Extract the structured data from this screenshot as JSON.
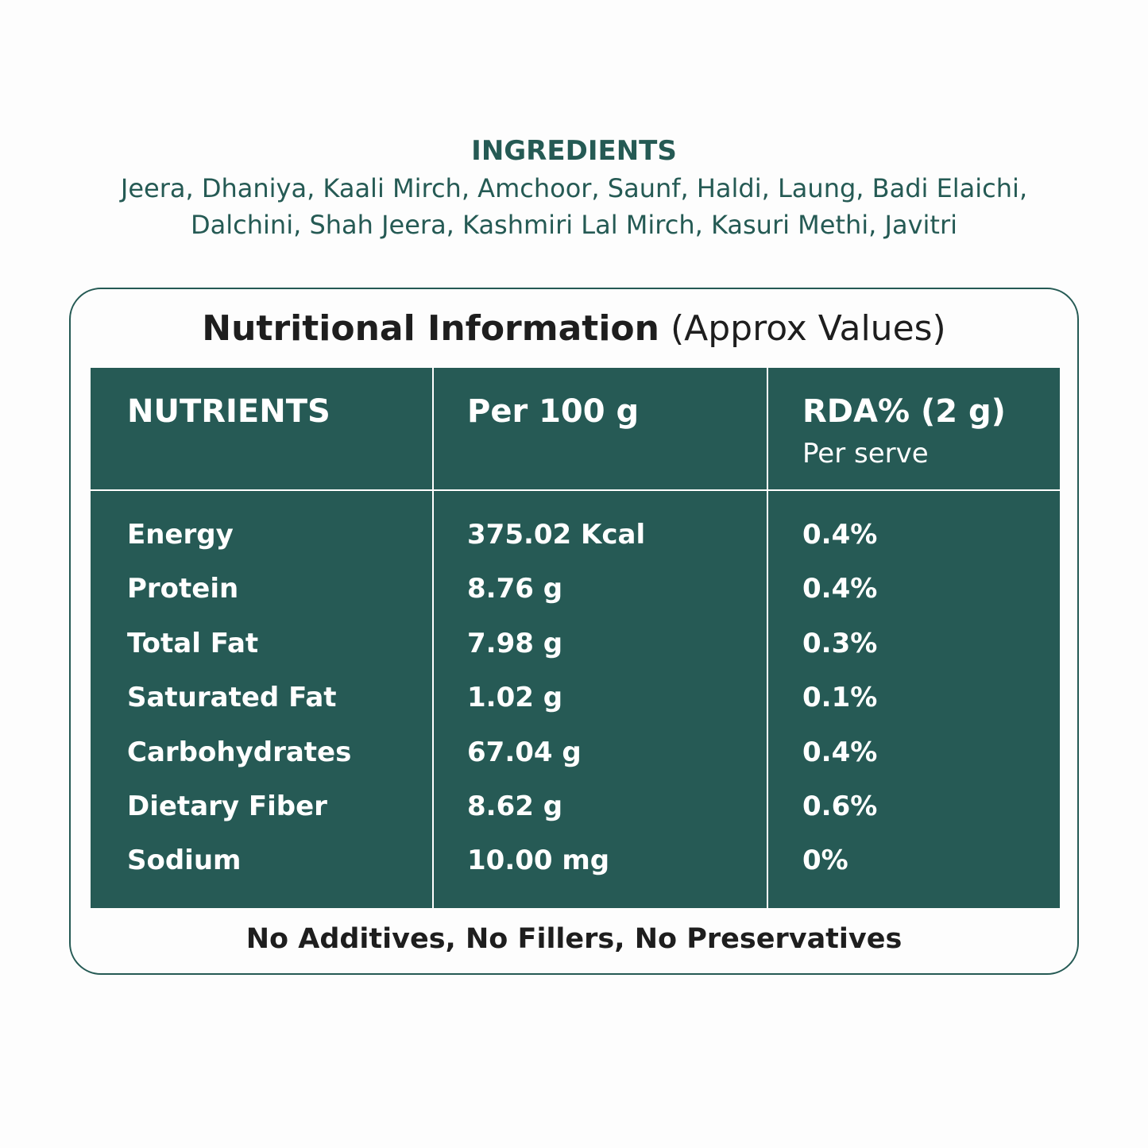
{
  "ingredients": {
    "title": "INGREDIENTS",
    "lines": [
      "Jeera, Dhaniya, Kaali Mirch, Amchoor, Saunf, Haldi, Laung, Badi Elaichi,",
      "Dalchini, Shah Jeera, Kashmiri Lal Mirch, Kasuri Methi, Javitri"
    ]
  },
  "nutrition": {
    "title": "Nutritional Information",
    "subtitle": "(Approx Values)",
    "header": [
      "NUTRIENTS",
      "Per 100 g",
      "RDA% (2 g)"
    ],
    "header_note": "Per serve",
    "rows": [
      [
        "Energy",
        "375.02 Kcal",
        "0.4%"
      ],
      [
        "Protein",
        "8.76 g",
        "0.4%"
      ],
      [
        "Total Fat",
        "7.98 g",
        "0.3%"
      ],
      [
        "Saturated Fat",
        "1.02 g",
        "0.1%"
      ],
      [
        "Carbohydrates",
        "67.04 g",
        "0.4%"
      ],
      [
        "Dietary Fiber",
        "8.62 g",
        "0.6%"
      ],
      [
        "Sodium",
        "10.00 mg",
        "0%"
      ]
    ]
  },
  "footer": "No Additives, No Fillers, No Preservatives"
}
